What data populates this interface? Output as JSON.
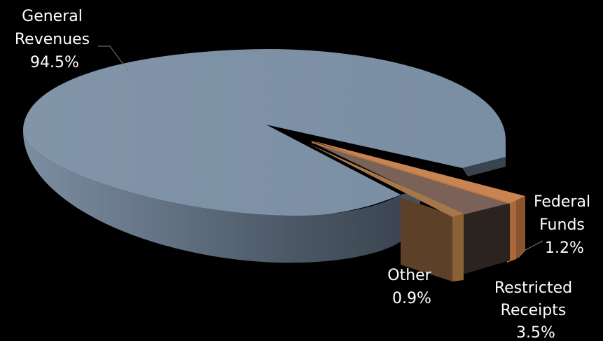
{
  "chart_data": {
    "type": "pie",
    "style": "3d-exploded",
    "slices": [
      {
        "label_lines": [
          "General",
          "Revenues"
        ],
        "value_label": "94.5%",
        "value": 94.5,
        "color": "#7b91a7"
      },
      {
        "label_lines": [
          "Federal",
          "Funds"
        ],
        "value_label": "1.2%",
        "value": 1.2,
        "color": "#c07a45"
      },
      {
        "label_lines": [
          "Restricted",
          "Receipts"
        ],
        "value_label": "3.5%",
        "value": 3.5,
        "color": "#7a6158"
      },
      {
        "label_lines": [
          "Other"
        ],
        "value_label": "0.9%",
        "value": 0.9,
        "color": "#8a6035"
      }
    ]
  }
}
